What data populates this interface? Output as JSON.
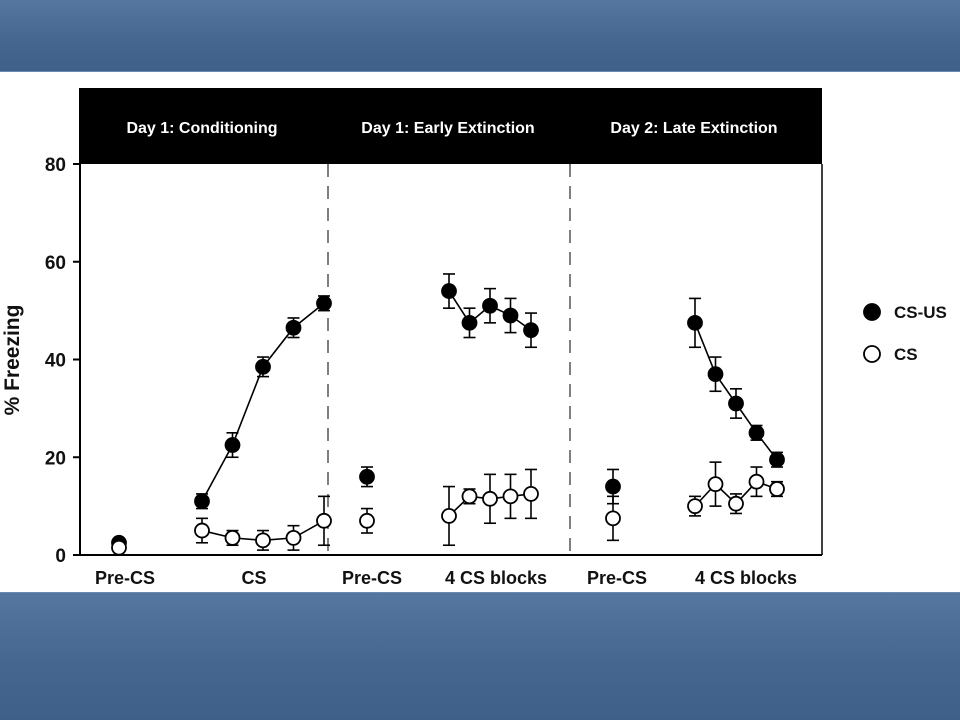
{
  "chart_data": {
    "type": "line",
    "ylabel": "% Freezing",
    "ylim": [
      0,
      80
    ],
    "yticks": [
      0,
      20,
      40,
      60,
      80
    ],
    "legend": {
      "placement": "right",
      "entries": [
        {
          "name": "CS-US",
          "marker": "filled-circle"
        },
        {
          "name": "CS",
          "marker": "open-circle"
        }
      ]
    },
    "panels": [
      {
        "title": "Day 1: Conditioning",
        "groups": [
          {
            "label": "Pre-CS",
            "series": [
              {
                "name": "CS-US",
                "x": [
                  1
                ],
                "values": [
                  2.5
                ],
                "errors": [
                  0.8
                ]
              },
              {
                "name": "CS",
                "x": [
                  1
                ],
                "values": [
                  1.5
                ],
                "errors": [
                  0.6
                ]
              }
            ]
          },
          {
            "label": "CS",
            "series": [
              {
                "name": "CS-US",
                "x": [
                  1,
                  2,
                  3,
                  4,
                  5
                ],
                "values": [
                  11,
                  22.5,
                  38.5,
                  46.5,
                  51.5
                ],
                "errors": [
                  1.5,
                  2.5,
                  2.0,
                  2.0,
                  1.5
                ]
              },
              {
                "name": "CS",
                "x": [
                  1,
                  2,
                  3,
                  4,
                  5
                ],
                "values": [
                  5,
                  3.5,
                  3,
                  3.5,
                  7
                ],
                "errors": [
                  2.5,
                  1.5,
                  2.0,
                  2.5,
                  5.0
                ]
              }
            ]
          }
        ]
      },
      {
        "title": "Day 1: Early Extinction",
        "groups": [
          {
            "label": "Pre-CS",
            "series": [
              {
                "name": "CS-US",
                "x": [
                  1
                ],
                "values": [
                  16
                ],
                "errors": [
                  2.0
                ]
              },
              {
                "name": "CS",
                "x": [
                  1
                ],
                "values": [
                  7
                ],
                "errors": [
                  2.5
                ]
              }
            ]
          },
          {
            "label": "4 CS blocks",
            "series": [
              {
                "name": "CS-US",
                "x": [
                  1,
                  2,
                  3,
                  4,
                  5
                ],
                "values": [
                  54,
                  47.5,
                  51,
                  49,
                  46
                ],
                "errors": [
                  3.5,
                  3.0,
                  3.5,
                  3.5,
                  3.5
                ]
              },
              {
                "name": "CS",
                "x": [
                  1,
                  2,
                  3,
                  4,
                  5
                ],
                "values": [
                  8,
                  12,
                  11.5,
                  12,
                  12.5
                ],
                "errors": [
                  6.0,
                  1.5,
                  5.0,
                  4.5,
                  5.0
                ]
              }
            ]
          }
        ]
      },
      {
        "title": "Day 2: Late Extinction",
        "groups": [
          {
            "label": "Pre-CS",
            "series": [
              {
                "name": "CS-US",
                "x": [
                  1
                ],
                "values": [
                  14
                ],
                "errors": [
                  3.5
                ]
              },
              {
                "name": "CS",
                "x": [
                  1
                ],
                "values": [
                  7.5
                ],
                "errors": [
                  4.5
                ]
              }
            ]
          },
          {
            "label": "4 CS blocks",
            "series": [
              {
                "name": "CS-US",
                "x": [
                  1,
                  2,
                  3,
                  4,
                  5
                ],
                "values": [
                  47.5,
                  37,
                  31,
                  25,
                  19.5
                ],
                "errors": [
                  5.0,
                  3.5,
                  3.0,
                  1.5,
                  1.5
                ]
              },
              {
                "name": "CS",
                "x": [
                  1,
                  2,
                  3,
                  4,
                  5
                ],
                "values": [
                  10,
                  14.5,
                  10.5,
                  15,
                  13.5
                ],
                "errors": [
                  2.0,
                  4.5,
                  2.0,
                  3.0,
                  1.5
                ]
              }
            ]
          }
        ]
      }
    ]
  },
  "colors": {
    "background": "#4a6a94",
    "panel": "#ffffff",
    "header": "#000000",
    "marker": "#000000"
  }
}
